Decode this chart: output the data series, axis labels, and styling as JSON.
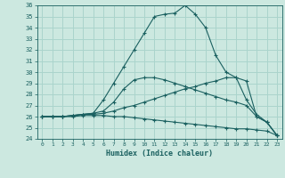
{
  "xlabel": "Humidex (Indice chaleur)",
  "xlim": [
    -0.5,
    23.5
  ],
  "ylim": [
    24,
    36
  ],
  "yticks": [
    24,
    25,
    26,
    27,
    28,
    29,
    30,
    31,
    32,
    33,
    34,
    35,
    36
  ],
  "xticks": [
    0,
    1,
    2,
    3,
    4,
    5,
    6,
    7,
    8,
    9,
    10,
    11,
    12,
    13,
    14,
    15,
    16,
    17,
    18,
    19,
    20,
    21,
    22,
    23
  ],
  "bg_color": "#cce8e0",
  "grid_color": "#aad4cc",
  "line_color": "#1a6060",
  "lines": [
    {
      "x": [
        0,
        1,
        2,
        3,
        4,
        5,
        6,
        7,
        8,
        9,
        10,
        11,
        12,
        13,
        14,
        15,
        16,
        17,
        18,
        19,
        20,
        21,
        22,
        23
      ],
      "y": [
        26.0,
        26.0,
        26.0,
        26.1,
        26.2,
        26.3,
        27.5,
        29.0,
        30.5,
        32.0,
        33.5,
        35.0,
        35.2,
        35.3,
        36.0,
        35.2,
        34.0,
        31.5,
        30.0,
        29.5,
        29.2,
        26.0,
        25.5,
        24.3
      ]
    },
    {
      "x": [
        0,
        1,
        2,
        3,
        4,
        5,
        6,
        7,
        8,
        9,
        10,
        11,
        12,
        13,
        14,
        15,
        16,
        17,
        18,
        19,
        20,
        21,
        22,
        23
      ],
      "y": [
        26.0,
        26.0,
        26.0,
        26.1,
        26.2,
        26.2,
        26.3,
        26.5,
        26.8,
        27.0,
        27.3,
        27.6,
        27.9,
        28.2,
        28.5,
        28.7,
        29.0,
        29.2,
        29.5,
        29.5,
        27.5,
        26.2,
        25.5,
        24.3
      ]
    },
    {
      "x": [
        0,
        1,
        2,
        3,
        4,
        5,
        6,
        7,
        8,
        9,
        10,
        11,
        12,
        13,
        14,
        15,
        16,
        17,
        18,
        19,
        20,
        21,
        22,
        23
      ],
      "y": [
        26.0,
        26.0,
        26.0,
        26.1,
        26.2,
        26.3,
        26.5,
        27.3,
        28.5,
        29.3,
        29.5,
        29.5,
        29.3,
        29.0,
        28.7,
        28.4,
        28.1,
        27.8,
        27.5,
        27.3,
        27.0,
        26.0,
        25.5,
        24.3
      ]
    },
    {
      "x": [
        0,
        1,
        2,
        3,
        4,
        5,
        6,
        7,
        8,
        9,
        10,
        11,
        12,
        13,
        14,
        15,
        16,
        17,
        18,
        19,
        20,
        21,
        22,
        23
      ],
      "y": [
        26.0,
        26.0,
        26.0,
        26.0,
        26.1,
        26.1,
        26.1,
        26.0,
        26.0,
        25.9,
        25.8,
        25.7,
        25.6,
        25.5,
        25.4,
        25.3,
        25.2,
        25.1,
        25.0,
        24.9,
        24.9,
        24.8,
        24.7,
        24.3
      ]
    }
  ]
}
